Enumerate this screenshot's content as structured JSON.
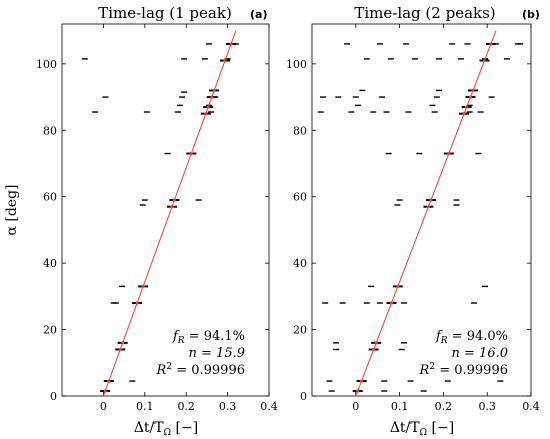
{
  "figure": {
    "ylabel": "α [deg]",
    "xlabel": "Δt/T",
    "xlabel_sub": "Ω",
    "xlabel_unit": " [−]"
  },
  "chart_data": [
    {
      "type": "scatter",
      "panel_label": "(a)",
      "title": "Time-lag (1 peak)",
      "xlim": [
        -0.1,
        0.4
      ],
      "ylim": [
        0,
        112
      ],
      "xticks": [
        0,
        0.1,
        0.2,
        0.3,
        0.4
      ],
      "xtick_labels": [
        "0",
        "0.1",
        "0.2",
        "0.3",
        "0.4"
      ],
      "yticks": [
        0,
        20,
        40,
        60,
        80,
        100
      ],
      "ytick_labels": [
        "0",
        "20",
        "40",
        "60",
        "80",
        "100"
      ],
      "fit_line": {
        "color": "#e8403a",
        "x": [
          0,
          0.32
        ],
        "y": [
          0,
          110
        ]
      },
      "stats": {
        "fR_label": "f",
        "fR_sub": "R",
        "fR_value": " = 94.1%",
        "n_text": "n = 15.9",
        "R2_label": "R",
        "R2_sup": "2",
        "R2_value": " = 0.99996"
      },
      "fit_points_alpha": [
        1.5,
        4.5,
        14,
        16,
        28,
        33,
        57,
        59,
        73,
        85,
        87,
        90,
        92,
        101,
        106
      ],
      "scatter": [
        {
          "x": -0.045,
          "y": 101.5
        },
        {
          "x": -0.02,
          "y": 85.5
        },
        {
          "x": 0.005,
          "y": 90
        },
        {
          "x": 0.025,
          "y": 28
        },
        {
          "x": 0.03,
          "y": 28
        },
        {
          "x": 0.045,
          "y": 33
        },
        {
          "x": 0.095,
          "y": 57.5
        },
        {
          "x": 0.1,
          "y": 59
        },
        {
          "x": 0.105,
          "y": 85.5
        },
        {
          "x": 0.155,
          "y": 73
        },
        {
          "x": 0.18,
          "y": 85.5
        },
        {
          "x": 0.185,
          "y": 87.5
        },
        {
          "x": 0.19,
          "y": 90
        },
        {
          "x": 0.195,
          "y": 91.5
        },
        {
          "x": 0.195,
          "y": 101.5
        },
        {
          "x": 0.23,
          "y": 59
        },
        {
          "x": 0.245,
          "y": 101.5
        },
        {
          "x": 0.255,
          "y": 106
        },
        {
          "x": 0.265,
          "y": 92
        },
        {
          "x": 0.27,
          "y": 90
        },
        {
          "x": 0.07,
          "y": 4.5
        },
        {
          "x": 0.255,
          "y": 87.5
        },
        {
          "x": 0.26,
          "y": 85.5
        },
        {
          "x": 0.3,
          "y": 101.5
        },
        {
          "x": 0.32,
          "y": 106
        }
      ]
    },
    {
      "type": "scatter",
      "panel_label": "(b)",
      "title": "Time-lag (2 peaks)",
      "xlim": [
        -0.1,
        0.4
      ],
      "ylim": [
        0,
        112
      ],
      "xticks": [
        0,
        0.1,
        0.2,
        0.3,
        0.4
      ],
      "xtick_labels": [
        "0",
        "0.1",
        "0.2",
        "0.3",
        "0.4"
      ],
      "yticks": [
        0,
        20,
        40,
        60,
        80,
        100
      ],
      "ytick_labels": [
        "0",
        "20",
        "40",
        "60",
        "80",
        "100"
      ],
      "fit_line": {
        "color": "#e8403a",
        "x": [
          0,
          0.32
        ],
        "y": [
          0,
          110
        ]
      },
      "stats": {
        "fR_label": "f",
        "fR_sub": "R",
        "fR_value": " = 94.0%",
        "n_text": "n = 16.0",
        "R2_label": "R",
        "R2_sup": "2",
        "R2_value": " = 0.99996"
      },
      "fit_points_alpha": [
        1.5,
        4.5,
        14,
        16,
        28,
        33,
        57,
        59,
        73,
        85,
        87,
        90,
        92,
        101,
        106
      ],
      "scatter": [
        {
          "x": -0.08,
          "y": 85.5
        },
        {
          "x": -0.075,
          "y": 90
        },
        {
          "x": -0.07,
          "y": 28
        },
        {
          "x": -0.06,
          "y": 4.5
        },
        {
          "x": -0.055,
          "y": 1.5
        },
        {
          "x": -0.045,
          "y": 14
        },
        {
          "x": -0.045,
          "y": 16
        },
        {
          "x": -0.04,
          "y": 90
        },
        {
          "x": -0.03,
          "y": 28
        },
        {
          "x": -0.02,
          "y": 106
        },
        {
          "x": -0.01,
          "y": 85.5
        },
        {
          "x": 0.0,
          "y": 90
        },
        {
          "x": 0.005,
          "y": 87.5
        },
        {
          "x": 0.015,
          "y": 92
        },
        {
          "x": 0.025,
          "y": 28
        },
        {
          "x": 0.025,
          "y": 101.5
        },
        {
          "x": 0.035,
          "y": 33
        },
        {
          "x": 0.04,
          "y": 85.5
        },
        {
          "x": 0.055,
          "y": 28
        },
        {
          "x": 0.055,
          "y": 106
        },
        {
          "x": 0.06,
          "y": 90
        },
        {
          "x": 0.065,
          "y": 1.5
        },
        {
          "x": 0.065,
          "y": 4.5
        },
        {
          "x": 0.07,
          "y": 85.5
        },
        {
          "x": 0.075,
          "y": 73
        },
        {
          "x": 0.08,
          "y": 101.5
        },
        {
          "x": 0.095,
          "y": 57.5
        },
        {
          "x": 0.1,
          "y": 59
        },
        {
          "x": 0.105,
          "y": 14
        },
        {
          "x": 0.11,
          "y": 16
        },
        {
          "x": 0.11,
          "y": 28
        },
        {
          "x": 0.115,
          "y": 106
        },
        {
          "x": 0.12,
          "y": 85.5
        },
        {
          "x": 0.125,
          "y": 4.5
        },
        {
          "x": 0.135,
          "y": 101.5
        },
        {
          "x": 0.145,
          "y": 73
        },
        {
          "x": 0.155,
          "y": 1.5
        },
        {
          "x": 0.175,
          "y": 87.5
        },
        {
          "x": 0.18,
          "y": 85.5
        },
        {
          "x": 0.185,
          "y": 90
        },
        {
          "x": 0.19,
          "y": 92
        },
        {
          "x": 0.19,
          "y": 101.5
        },
        {
          "x": 0.21,
          "y": 4.5
        },
        {
          "x": 0.22,
          "y": 106
        },
        {
          "x": 0.23,
          "y": 57.5
        },
        {
          "x": 0.23,
          "y": 59
        },
        {
          "x": 0.24,
          "y": 101.5
        },
        {
          "x": 0.255,
          "y": 106
        },
        {
          "x": 0.26,
          "y": 85.5
        },
        {
          "x": 0.26,
          "y": 87.5
        },
        {
          "x": 0.265,
          "y": 92
        },
        {
          "x": 0.265,
          "y": 90
        },
        {
          "x": 0.27,
          "y": 28
        },
        {
          "x": 0.28,
          "y": 73
        },
        {
          "x": 0.285,
          "y": 85.5
        },
        {
          "x": 0.295,
          "y": 33
        },
        {
          "x": 0.295,
          "y": 101.5
        },
        {
          "x": 0.31,
          "y": 90
        },
        {
          "x": 0.32,
          "y": 106
        },
        {
          "x": 0.33,
          "y": 4.5
        },
        {
          "x": 0.345,
          "y": 101.5
        },
        {
          "x": 0.37,
          "y": 106
        },
        {
          "x": 0.375,
          "y": 106
        }
      ]
    }
  ]
}
